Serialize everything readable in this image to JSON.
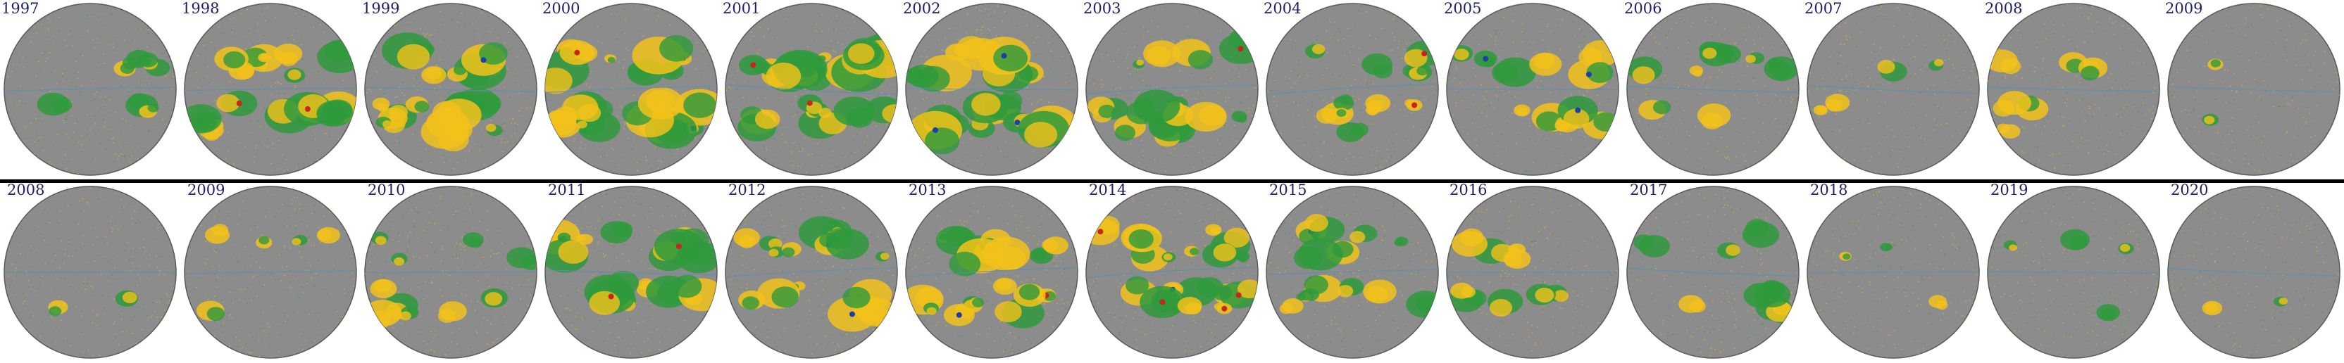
{
  "colors": {
    "disk": "#8c8c8c",
    "disk_rim": "#5a5a5a",
    "equator": "#5a8fb0",
    "positive_polarity": "#f2c21a",
    "negative_polarity": "#2e9a3c",
    "strong_core": "#1f3fa8",
    "strong_core_alt": "#c8261c",
    "label_text": "#1e1e6e",
    "divider": "#000000"
  },
  "rows": [
    {
      "panels": [
        {
          "year": "1997",
          "activity": 0.25
        },
        {
          "year": "1998",
          "activity": 0.85
        },
        {
          "year": "1999",
          "activity": 0.8
        },
        {
          "year": "2000",
          "activity": 0.95
        },
        {
          "year": "2001",
          "activity": 0.9
        },
        {
          "year": "2002",
          "activity": 0.85
        },
        {
          "year": "2003",
          "activity": 0.65
        },
        {
          "year": "2004",
          "activity": 0.5
        },
        {
          "year": "2005",
          "activity": 0.45
        },
        {
          "year": "2006",
          "activity": 0.4
        },
        {
          "year": "2007",
          "activity": 0.15
        },
        {
          "year": "2008",
          "activity": 0.25
        },
        {
          "year": "2009",
          "activity": 0.05
        }
      ]
    },
    {
      "panels": [
        {
          "year": "2008",
          "activity": 0.05
        },
        {
          "year": "2009",
          "activity": 0.2
        },
        {
          "year": "2010",
          "activity": 0.4
        },
        {
          "year": "2011",
          "activity": 0.7
        },
        {
          "year": "2012",
          "activity": 0.7
        },
        {
          "year": "2013",
          "activity": 0.75
        },
        {
          "year": "2014",
          "activity": 0.85
        },
        {
          "year": "2015",
          "activity": 0.6
        },
        {
          "year": "2016",
          "activity": 0.35
        },
        {
          "year": "2017",
          "activity": 0.3
        },
        {
          "year": "2018",
          "activity": 0.1
        },
        {
          "year": "2019",
          "activity": 0.12
        },
        {
          "year": "2020",
          "activity": 0.05
        }
      ]
    }
  ]
}
